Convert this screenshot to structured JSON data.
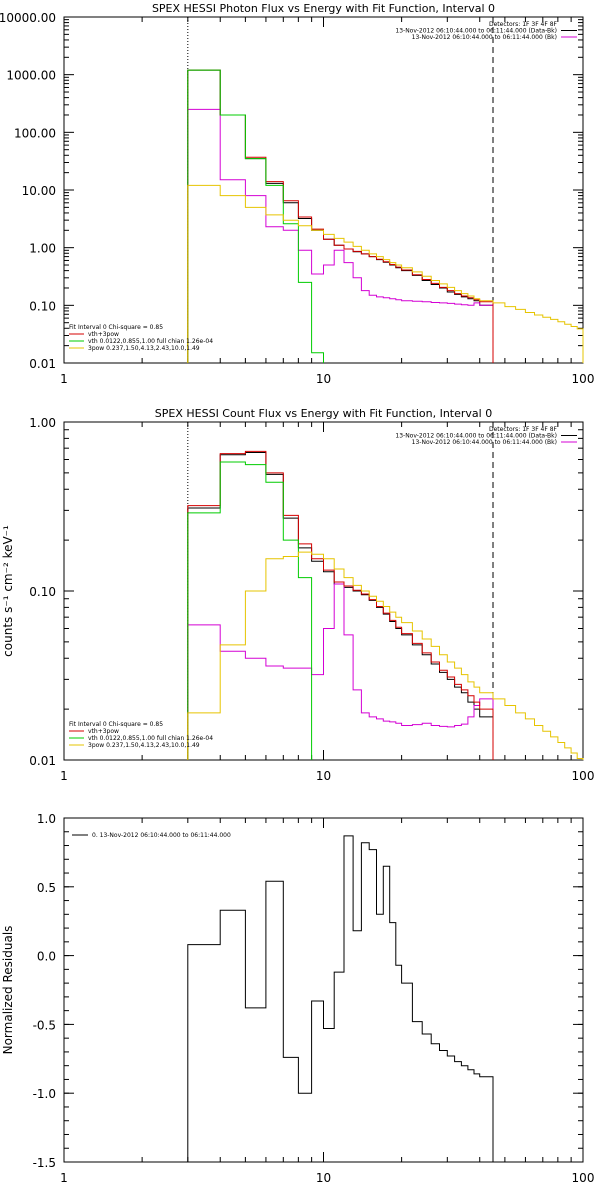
{
  "chart_data": [
    {
      "type": "line",
      "scale": "log-log",
      "title": "SPEX HESSI Photon Flux vs Energy with Fit Function, Interval 0",
      "xlabel": "",
      "ylabel": "",
      "xlim": [
        1,
        100
      ],
      "ylim": [
        0.01,
        10000
      ],
      "x_ticks": [
        {
          "v": 1,
          "label": "1"
        },
        {
          "v": 10,
          "label": "10"
        },
        {
          "v": 100,
          "label": "100"
        }
      ],
      "y_ticks": [
        {
          "v": 0.01,
          "label": "0.01"
        },
        {
          "v": 0.1,
          "label": "0.10"
        },
        {
          "v": 1,
          "label": "1.00"
        },
        {
          "v": 10,
          "label": "10.00"
        },
        {
          "v": 100,
          "label": "100.00"
        },
        {
          "v": 1000,
          "label": "1000.00"
        },
        {
          "v": 10000,
          "label": "10000.00"
        }
      ],
      "vlines": [
        {
          "x": 3.0,
          "style": "dotted"
        },
        {
          "x": 45.0,
          "style": "dashed"
        }
      ],
      "header": [
        "Detectors: 1F 3F 4F 8F",
        "13-Nov-2012 06:10:44.000 to 06:11:44.000 (Data-Bk)",
        "13-Nov-2012 06:10:44.000 to 06:11:44.000 (Bk)"
      ],
      "header_colors": [
        "",
        "#000000",
        "#d400d4"
      ],
      "fit_legend": [
        {
          "text": "Fit Interval 0   Chi-square = 0.85",
          "color": ""
        },
        {
          "text": "vth+3pow",
          "color": "#d40000"
        },
        {
          "text": "vth 0.0122,0.855,1.00  full chian 1.26e-04",
          "color": "#00cc00"
        },
        {
          "text": "3pow 0.237,1.50,4.13,2.43,10.0,1.49",
          "color": "#e6c400"
        }
      ],
      "edges": [
        3.0,
        4.0,
        5.0,
        6.0,
        7.0,
        8.0,
        9.0,
        10.0,
        11.0,
        12.0,
        13.0,
        14.0,
        15.0,
        16.0,
        17.0,
        18.0,
        19.0,
        20.0,
        22.0,
        24.0,
        26.0,
        28.0,
        30.0,
        32.0,
        34.0,
        36.0,
        38.0,
        40.0,
        45.0,
        50.0,
        55.0,
        60.0,
        65.0,
        70.0,
        75.0,
        80.0,
        85.0,
        90.0,
        95.0,
        100.0
      ],
      "series": [
        {
          "name": "",
          "color": "#000000",
          "end_index": 28,
          "values": [
            1200,
            200,
            35,
            13,
            6,
            3.2,
            2.0,
            1.4,
            1.1,
            0.95,
            0.85,
            0.78,
            0.7,
            0.62,
            0.56,
            0.5,
            0.45,
            0.4,
            0.33,
            0.27,
            0.23,
            0.2,
            0.17,
            0.155,
            0.14,
            0.13,
            0.12,
            0.1
          ]
        },
        {
          "name": "",
          "color": "#d400d4",
          "end_index": 28,
          "values": [
            250,
            15,
            8,
            2.3,
            2.0,
            0.9,
            0.35,
            0.5,
            0.9,
            0.55,
            0.3,
            0.18,
            0.15,
            0.14,
            0.135,
            0.13,
            0.125,
            0.12,
            0.118,
            0.115,
            0.112,
            0.11,
            0.108,
            0.105,
            0.102,
            0.1,
            0.11,
            0.1
          ]
        },
        {
          "name": "",
          "color": "#d40000",
          "end_index": 28,
          "values": [
            1200,
            200,
            37,
            14,
            6.5,
            3.4,
            2.1,
            1.4,
            1.1,
            0.95,
            0.86,
            0.78,
            0.7,
            0.63,
            0.57,
            0.51,
            0.46,
            0.41,
            0.34,
            0.28,
            0.24,
            0.205,
            0.18,
            0.16,
            0.145,
            0.135,
            0.125,
            0.115
          ]
        },
        {
          "name": "",
          "color": "#00cc00",
          "end_index": 7,
          "values": [
            1200,
            200,
            35,
            12,
            2.6,
            0.25,
            0.015
          ]
        },
        {
          "name": "",
          "color": "#e6c400",
          "end_index": 39,
          "values": [
            12,
            8,
            5,
            3.7,
            3.0,
            2.4,
            2.0,
            1.7,
            1.45,
            1.25,
            1.05,
            0.9,
            0.78,
            0.7,
            0.62,
            0.55,
            0.5,
            0.45,
            0.38,
            0.32,
            0.27,
            0.235,
            0.205,
            0.18,
            0.16,
            0.145,
            0.13,
            0.12,
            0.11,
            0.095,
            0.085,
            0.075,
            0.068,
            0.062,
            0.057,
            0.052,
            0.047,
            0.043,
            0.039
          ]
        }
      ]
    },
    {
      "type": "line",
      "scale": "log-log",
      "title": "SPEX HESSI Count Flux vs Energy with Fit Function, Interval 0",
      "xlabel": "",
      "ylabel": "counts s⁻¹ cm⁻² keV⁻¹",
      "xlim": [
        1,
        100
      ],
      "ylim": [
        0.01,
        1.0
      ],
      "x_ticks": [
        {
          "v": 1,
          "label": "1"
        },
        {
          "v": 10,
          "label": "10"
        },
        {
          "v": 100,
          "label": "100"
        }
      ],
      "y_ticks": [
        {
          "v": 0.01,
          "label": "0.01"
        },
        {
          "v": 0.1,
          "label": "0.10"
        },
        {
          "v": 1,
          "label": "1.00"
        }
      ],
      "vlines": [
        {
          "x": 3.0,
          "style": "dotted"
        },
        {
          "x": 45.0,
          "style": "dashed"
        }
      ],
      "header": [
        "Detectors: 1F 3F 4F 8F",
        "13-Nov-2012 06:10:44.000 to 06:11:44.000 (Data-Bk)",
        "13-Nov-2012 06:10:44.000 to 06:11:44.000 (Bk)"
      ],
      "header_colors": [
        "",
        "#000000",
        "#d400d4"
      ],
      "fit_legend": [
        {
          "text": "Fit Interval 0   Chi-square = 0.85",
          "color": ""
        },
        {
          "text": "vth+3pow",
          "color": "#d40000"
        },
        {
          "text": "vth 0.0122,0.855,1.00  full chian 1.26e-04",
          "color": "#00cc00"
        },
        {
          "text": "3pow 0.237,1.50,4.13,2.43,10.0,1.49",
          "color": "#e6c400"
        }
      ],
      "edges": [
        3.0,
        4.0,
        5.0,
        6.0,
        7.0,
        8.0,
        9.0,
        10.0,
        11.0,
        12.0,
        13.0,
        14.0,
        15.0,
        16.0,
        17.0,
        18.0,
        19.0,
        20.0,
        22.0,
        24.0,
        26.0,
        28.0,
        30.0,
        32.0,
        34.0,
        36.0,
        38.0,
        40.0,
        45.0,
        50.0,
        55.0,
        60.0,
        65.0,
        70.0,
        75.0,
        80.0,
        85.0,
        90.0,
        95.0,
        100.0
      ],
      "series": [
        {
          "name": "",
          "color": "#000000",
          "end_index": 28,
          "values": [
            0.31,
            0.64,
            0.66,
            0.49,
            0.27,
            0.18,
            0.15,
            0.13,
            0.11,
            0.105,
            0.1,
            0.095,
            0.088,
            0.08,
            0.073,
            0.066,
            0.06,
            0.055,
            0.048,
            0.042,
            0.037,
            0.033,
            0.03,
            0.027,
            0.025,
            0.022,
            0.02,
            0.018
          ]
        },
        {
          "name": "",
          "color": "#d400d4",
          "end_index": 28,
          "values": [
            0.063,
            0.044,
            0.04,
            0.036,
            0.035,
            0.035,
            0.032,
            0.06,
            0.11,
            0.055,
            0.026,
            0.019,
            0.018,
            0.0175,
            0.017,
            0.0168,
            0.0165,
            0.016,
            0.0162,
            0.0165,
            0.016,
            0.0158,
            0.0157,
            0.016,
            0.0163,
            0.018,
            0.021,
            0.023
          ]
        },
        {
          "name": "",
          "color": "#d40000",
          "end_index": 28,
          "values": [
            0.32,
            0.65,
            0.67,
            0.5,
            0.28,
            0.19,
            0.155,
            0.133,
            0.113,
            0.107,
            0.101,
            0.096,
            0.089,
            0.081,
            0.074,
            0.067,
            0.061,
            0.056,
            0.049,
            0.043,
            0.038,
            0.034,
            0.031,
            0.028,
            0.026,
            0.024,
            0.022,
            0.02
          ]
        },
        {
          "name": "",
          "color": "#00cc00",
          "end_index": 6,
          "values": [
            0.29,
            0.58,
            0.56,
            0.44,
            0.2,
            0.12
          ]
        },
        {
          "name": "",
          "color": "#e6c400",
          "end_index": 39,
          "values": [
            0.019,
            0.048,
            0.1,
            0.155,
            0.16,
            0.17,
            0.165,
            0.155,
            0.135,
            0.12,
            0.108,
            0.1,
            0.093,
            0.087,
            0.081,
            0.075,
            0.07,
            0.065,
            0.058,
            0.052,
            0.047,
            0.042,
            0.038,
            0.035,
            0.032,
            0.029,
            0.027,
            0.025,
            0.023,
            0.021,
            0.019,
            0.0175,
            0.016,
            0.0148,
            0.0137,
            0.0127,
            0.0118,
            0.011,
            0.0102
          ]
        }
      ]
    },
    {
      "type": "line",
      "scale": "log-linear",
      "title": "",
      "xlabel": "",
      "ylabel": "Normalized Residuals",
      "xlim": [
        1,
        100
      ],
      "ylim": [
        -1.5,
        1.0
      ],
      "x_ticks": [
        {
          "v": 1,
          "label": "1"
        },
        {
          "v": 10,
          "label": "10"
        },
        {
          "v": 100,
          "label": "100"
        }
      ],
      "y_ticks": [
        {
          "v": -1.5,
          "label": "-1.5"
        },
        {
          "v": -1.0,
          "label": "-1.0"
        },
        {
          "v": -0.5,
          "label": "-0.5"
        },
        {
          "v": 0.0,
          "label": "0.0"
        },
        {
          "v": 0.5,
          "label": "0.5"
        },
        {
          "v": 1.0,
          "label": "1.0"
        }
      ],
      "legend": [
        {
          "text": "0. 13-Nov-2012 06:10:44.000 to 06:11:44.000",
          "color": "#000000"
        }
      ],
      "edges": [
        3.0,
        4.0,
        5.0,
        6.0,
        7.0,
        8.0,
        9.0,
        10.0,
        11.0,
        12.0,
        13.0,
        14.0,
        15.0,
        16.0,
        17.0,
        18.0,
        19.0,
        20.0,
        22.0,
        24.0,
        26.0,
        28.0,
        30.0,
        32.0,
        34.0,
        36.0,
        38.0,
        40.0,
        45.0
      ],
      "series": [
        {
          "name": "",
          "color": "#000000",
          "end_index": 28,
          "values": [
            0.08,
            0.33,
            -0.38,
            0.54,
            -0.74,
            -1.0,
            -0.33,
            -0.53,
            -0.12,
            0.87,
            0.18,
            0.82,
            0.77,
            0.3,
            0.65,
            0.24,
            -0.07,
            -0.2,
            -0.48,
            -0.57,
            -0.64,
            -0.69,
            -0.73,
            -0.77,
            -0.8,
            -0.83,
            -0.86,
            -0.88
          ]
        }
      ]
    }
  ]
}
